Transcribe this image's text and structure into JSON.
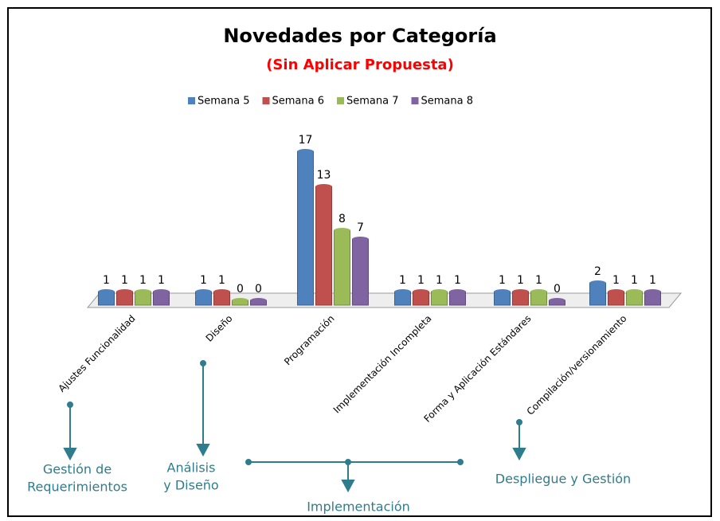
{
  "chart_data": {
    "type": "bar3d",
    "title": "Novedades por Categoría",
    "subtitle": "(Sin Aplicar Propuesta)",
    "categories": [
      "Ajustes Funcionalidad",
      "Diseño",
      "Programación",
      "Implementación Incompleta",
      "Forma y Aplicación Estándares",
      "Compilación/versionamiento"
    ],
    "series": [
      {
        "name": "Semana 5",
        "color": "#4f81bd",
        "values": [
          1,
          1,
          17,
          1,
          1,
          2
        ]
      },
      {
        "name": "Semana 6",
        "color": "#c0504d",
        "values": [
          1,
          1,
          13,
          1,
          1,
          1
        ]
      },
      {
        "name": "Semana 7",
        "color": "#9bbb59",
        "values": [
          1,
          0,
          8,
          1,
          1,
          1
        ]
      },
      {
        "name": "Semana 8",
        "color": "#8064a2",
        "values": [
          1,
          0,
          7,
          1,
          0,
          1
        ]
      }
    ],
    "annotations": [
      {
        "lines": [
          "Gestión de",
          "Requerimientos"
        ]
      },
      {
        "lines": [
          "Análisis",
          "y Diseño"
        ]
      },
      {
        "lines": [
          "Implementación"
        ]
      },
      {
        "lines": [
          "Despliegue y Gestión"
        ]
      }
    ]
  }
}
